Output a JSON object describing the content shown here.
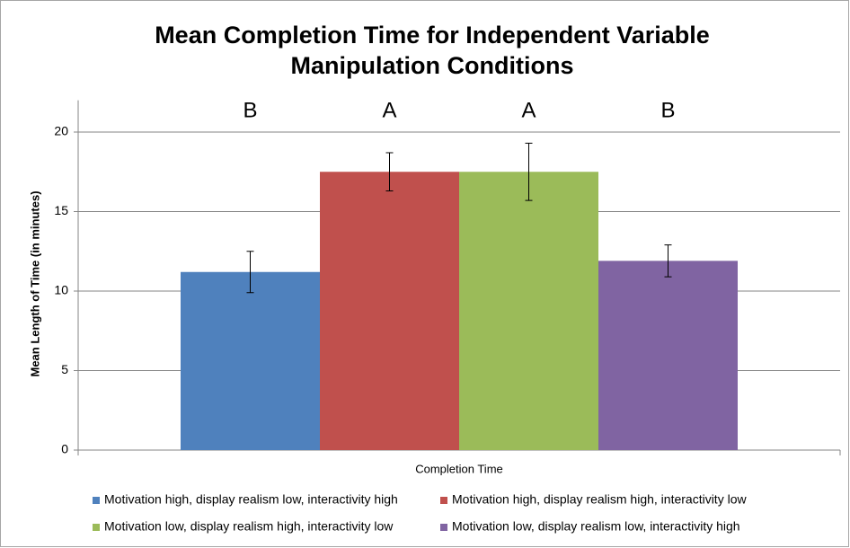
{
  "chart_data": {
    "type": "bar",
    "title": "Mean Completion Time for Independent Variable Manipulation Conditions",
    "ylabel": "Mean Length of Time (in minutes)",
    "xlabel": "Completion Time",
    "categories": [
      "Completion Time"
    ],
    "series": [
      {
        "name": "Motivation high, display realism low, interactivity high",
        "color": "#4f81bd",
        "values": [
          11.2
        ],
        "errors": [
          1.3
        ]
      },
      {
        "name": "Motivation high, display realism high, interactivity low",
        "color": "#c0504d",
        "values": [
          17.5
        ],
        "errors": [
          1.2
        ]
      },
      {
        "name": "Motivation low, display realism high, interactivity low",
        "color": "#9bbb59",
        "values": [
          17.5
        ],
        "errors": [
          1.8
        ]
      },
      {
        "name": "Motivation low, display realism low, interactivity high",
        "color": "#8064a2",
        "values": [
          11.9
        ],
        "errors": [
          1.0
        ]
      }
    ],
    "annotations": [
      "B",
      "A",
      "A",
      "B"
    ],
    "ylim": [
      0,
      22
    ],
    "yticks": [
      0,
      5,
      10,
      15,
      20
    ],
    "grid": true
  }
}
